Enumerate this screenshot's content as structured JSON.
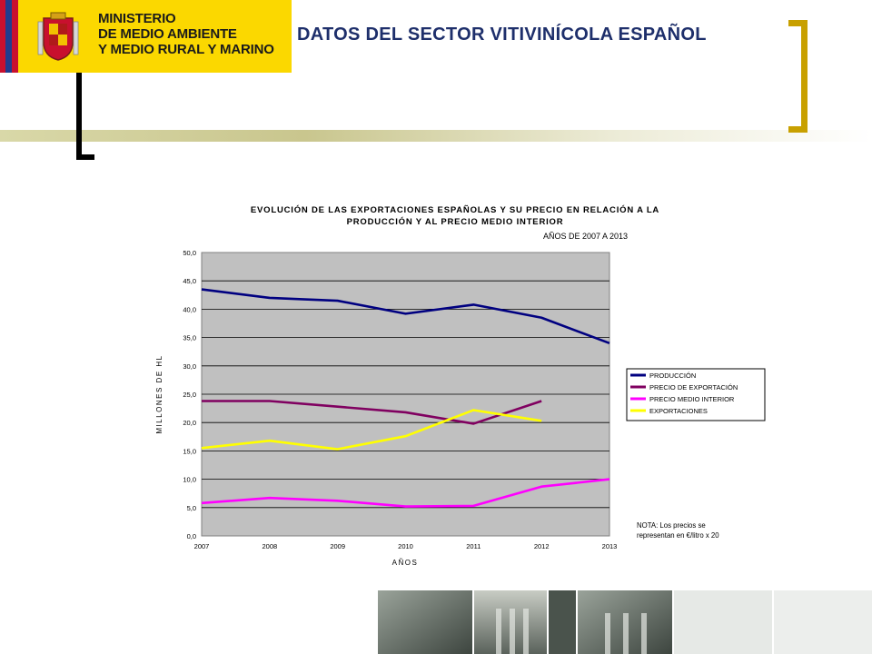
{
  "header": {
    "ministry_lines": "MINISTERIO\nDE MEDIO AMBIENTE\nY MEDIO RURAL Y MARINO",
    "title": "DATOS DEL SECTOR VITIVINÍCOLA ESPAÑOL"
  },
  "colors": {
    "header_yellow": "#fbd800",
    "title_blue": "#1e2f6b",
    "bracket_gold": "#c8a000",
    "plot_bg": "#c0c0c0"
  },
  "chart_data": {
    "type": "line",
    "title_line1": "EVOLUCIÓN DE LAS EXPORTACIONES ESPAÑOLAS Y SU PRECIO  EN RELACIÓN A LA",
    "title_line2": "PRODUCCIÓN Y AL PRECIO MEDIO INTERIOR",
    "subtitle": "AÑOS DE 2007 A 2013",
    "xlabel": "AÑOS",
    "ylabel": "MILLONES DE HL",
    "x": [
      "2007",
      "2008",
      "2009",
      "2010",
      "2011",
      "2012",
      "2013"
    ],
    "y_ticks": [
      "0,0",
      "5,0",
      "10,0",
      "15,0",
      "20,0",
      "25,0",
      "30,0",
      "35,0",
      "40,0",
      "45,0",
      "50,0"
    ],
    "ylim": [
      0,
      50
    ],
    "grid": true,
    "legend_position": "right",
    "series": [
      {
        "name": "PRODUCCIÓN",
        "color": "#000080",
        "values": [
          43.5,
          42.0,
          41.5,
          39.2,
          40.8,
          38.5,
          34.0
        ]
      },
      {
        "name": "PRECIO DE EXPORTACIÓN",
        "color": "#800060",
        "values": [
          23.8,
          23.8,
          22.8,
          21.8,
          19.8,
          23.8,
          null
        ]
      },
      {
        "name": "PRECIO MEDIO INTERIOR",
        "color": "#ff00ff",
        "values": [
          5.8,
          6.7,
          6.2,
          5.2,
          5.3,
          8.7,
          10.0
        ]
      },
      {
        "name": "EXPORTACIONES",
        "color": "#ffff00",
        "values": [
          15.5,
          16.8,
          15.3,
          17.6,
          22.2,
          20.3,
          null
        ]
      }
    ],
    "note": "NOTA: Los precios se\nrepresentan en €/litro x 20"
  }
}
